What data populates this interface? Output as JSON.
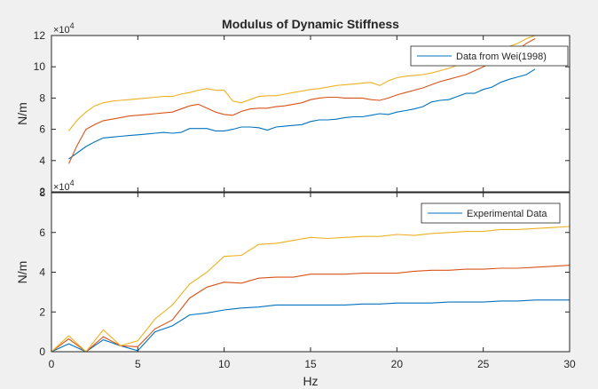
{
  "figure": {
    "title": "Modulus of Dynamic Stiffness",
    "background": "#f0f0f0"
  },
  "chart_data": [
    {
      "type": "line",
      "title": "Modulus of Dynamic Stiffness",
      "xlabel": "",
      "ylabel": "N/m",
      "xlim": [
        0,
        30
      ],
      "ylim": [
        2,
        12
      ],
      "y_exponent_label": "×10",
      "y_exponent": "4",
      "xticks": [
        "0",
        "5",
        "10",
        "15",
        "20",
        "25",
        "30"
      ],
      "yticks": [
        "2",
        "4",
        "6",
        "8",
        "10",
        "12"
      ],
      "legend": {
        "placement": "top-right",
        "entries": [
          "Data from Wei(1998)"
        ]
      },
      "series": [
        {
          "color": "#0072bd",
          "x": [
            1,
            1.5,
            2,
            2.5,
            3,
            3.5,
            4,
            4.5,
            5,
            5.5,
            6,
            6.5,
            7,
            7.5,
            8,
            8.5,
            9,
            9.5,
            10,
            10.5,
            11,
            11.5,
            12,
            12.5,
            13,
            13.5,
            14,
            14.5,
            15,
            15.5,
            16,
            16.5,
            17,
            17.5,
            18,
            18.5,
            19,
            19.5,
            20,
            20.5,
            21,
            21.5,
            22,
            22.5,
            23,
            23.5,
            24,
            24.5,
            25,
            25.5,
            26,
            26.5,
            27,
            27.5,
            28
          ],
          "y": [
            4.1,
            4.5,
            4.9,
            5.2,
            5.45,
            5.5,
            5.55,
            5.6,
            5.65,
            5.7,
            5.75,
            5.8,
            5.75,
            5.8,
            6.05,
            6.05,
            6.05,
            5.9,
            5.9,
            6.0,
            6.15,
            6.15,
            6.1,
            5.95,
            6.15,
            6.2,
            6.25,
            6.3,
            6.5,
            6.6,
            6.6,
            6.65,
            6.75,
            6.8,
            6.8,
            6.9,
            7.0,
            6.95,
            7.1,
            7.2,
            7.3,
            7.45,
            7.75,
            7.85,
            7.9,
            8.1,
            8.3,
            8.3,
            8.55,
            8.7,
            9.0,
            9.2,
            9.35,
            9.5,
            9.85
          ]
        },
        {
          "color": "#d95319",
          "x": [
            1,
            1.5,
            2,
            2.5,
            3,
            3.5,
            4,
            4.5,
            5,
            5.5,
            6,
            6.5,
            7,
            7.5,
            8,
            8.5,
            9,
            9.5,
            10,
            10.5,
            11,
            11.5,
            12,
            12.5,
            13,
            13.5,
            14,
            14.5,
            15,
            15.5,
            16,
            16.5,
            17,
            17.5,
            18,
            18.5,
            19,
            19.5,
            20,
            20.5,
            21,
            21.5,
            22,
            22.5,
            23,
            23.5,
            24,
            24.5,
            25,
            25.5,
            26,
            26.5,
            27,
            27.5,
            28
          ],
          "y": [
            3.8,
            5.0,
            6.0,
            6.3,
            6.55,
            6.65,
            6.75,
            6.85,
            6.9,
            6.95,
            7.0,
            7.05,
            7.1,
            7.3,
            7.5,
            7.6,
            7.35,
            7.1,
            6.95,
            6.9,
            7.15,
            7.3,
            7.35,
            7.35,
            7.45,
            7.5,
            7.6,
            7.7,
            7.9,
            8.0,
            8.05,
            8.05,
            8.0,
            8.0,
            8.0,
            7.9,
            7.85,
            8.0,
            8.2,
            8.35,
            8.5,
            8.65,
            8.85,
            9.05,
            9.2,
            9.35,
            9.5,
            9.75,
            10.0,
            10.3,
            10.55,
            10.85,
            11.1,
            11.5,
            11.8
          ]
        },
        {
          "color": "#edb120",
          "x": [
            1,
            1.5,
            2,
            2.5,
            3,
            3.5,
            4,
            4.5,
            5,
            5.5,
            6,
            6.5,
            7,
            7.5,
            8,
            8.5,
            9,
            9.5,
            10,
            10.5,
            11,
            11.5,
            12,
            12.5,
            13,
            13.5,
            14,
            14.5,
            15,
            15.5,
            16,
            16.5,
            17,
            17.5,
            18,
            18.5,
            19,
            19.5,
            20,
            20.5,
            21,
            21.5,
            22,
            22.5,
            23,
            23.5,
            24,
            24.5,
            25,
            25.5,
            26,
            26.5,
            27,
            27.5,
            28
          ],
          "y": [
            5.9,
            6.6,
            7.1,
            7.5,
            7.7,
            7.8,
            7.85,
            7.9,
            7.95,
            8.0,
            8.05,
            8.1,
            8.1,
            8.25,
            8.35,
            8.5,
            8.6,
            8.5,
            8.5,
            7.8,
            7.7,
            7.9,
            8.1,
            8.15,
            8.15,
            8.25,
            8.35,
            8.45,
            8.55,
            8.6,
            8.7,
            8.8,
            8.85,
            8.9,
            8.95,
            9.0,
            8.8,
            9.1,
            9.3,
            9.4,
            9.45,
            9.5,
            9.6,
            9.75,
            9.9,
            10.1,
            10.3,
            10.5,
            10.7,
            10.9,
            11.1,
            11.3,
            11.5,
            11.8,
            12.0
          ]
        }
      ]
    },
    {
      "type": "line",
      "title": "",
      "xlabel": "Hz",
      "ylabel": "N/m",
      "xlim": [
        0,
        30
      ],
      "ylim": [
        0,
        8
      ],
      "y_exponent_label": "×10",
      "y_exponent": "4",
      "xticks": [
        "0",
        "5",
        "10",
        "15",
        "20",
        "25",
        "30"
      ],
      "yticks": [
        "0",
        "2",
        "4",
        "6",
        "8"
      ],
      "legend": {
        "placement": "top-right",
        "entries": [
          "Experimental Data"
        ]
      },
      "series": [
        {
          "color": "#0072bd",
          "x": [
            0,
            1,
            2,
            3,
            4,
            5,
            6,
            7,
            8,
            9,
            10,
            11,
            12,
            13,
            14,
            15,
            16,
            17,
            18,
            19,
            20,
            21,
            22,
            23,
            24,
            25,
            26,
            27,
            28,
            29,
            30
          ],
          "y": [
            0,
            0.4,
            0,
            0.6,
            0.3,
            0.05,
            1.0,
            1.3,
            1.85,
            1.95,
            2.1,
            2.2,
            2.25,
            2.35,
            2.35,
            2.35,
            2.35,
            2.35,
            2.4,
            2.4,
            2.45,
            2.45,
            2.45,
            2.5,
            2.5,
            2.5,
            2.55,
            2.55,
            2.6,
            2.6,
            2.6
          ]
        },
        {
          "color": "#d95319",
          "x": [
            0,
            1,
            2,
            3,
            4,
            5,
            6,
            7,
            8,
            9,
            10,
            11,
            12,
            13,
            14,
            15,
            16,
            17,
            18,
            19,
            20,
            21,
            22,
            23,
            24,
            25,
            26,
            27,
            28,
            29,
            30
          ],
          "y": [
            0,
            0.65,
            0,
            0.75,
            0.3,
            0.25,
            1.15,
            1.6,
            2.7,
            3.25,
            3.5,
            3.45,
            3.7,
            3.75,
            3.75,
            3.9,
            3.9,
            3.9,
            3.95,
            3.95,
            3.95,
            4.05,
            4.1,
            4.1,
            4.15,
            4.15,
            4.2,
            4.2,
            4.25,
            4.3,
            4.35
          ]
        },
        {
          "color": "#edb120",
          "x": [
            0,
            1,
            2,
            3,
            4,
            5,
            6,
            7,
            8,
            9,
            10,
            11,
            12,
            13,
            14,
            15,
            16,
            17,
            18,
            19,
            20,
            21,
            22,
            23,
            24,
            25,
            26,
            27,
            28,
            29,
            30
          ],
          "y": [
            0,
            0.8,
            0,
            1.1,
            0.3,
            0.55,
            1.65,
            2.35,
            3.4,
            4.0,
            4.8,
            4.85,
            5.4,
            5.45,
            5.6,
            5.75,
            5.7,
            5.75,
            5.8,
            5.8,
            5.9,
            5.85,
            5.95,
            6.0,
            6.05,
            6.05,
            6.15,
            6.15,
            6.2,
            6.25,
            6.3
          ]
        }
      ]
    }
  ]
}
